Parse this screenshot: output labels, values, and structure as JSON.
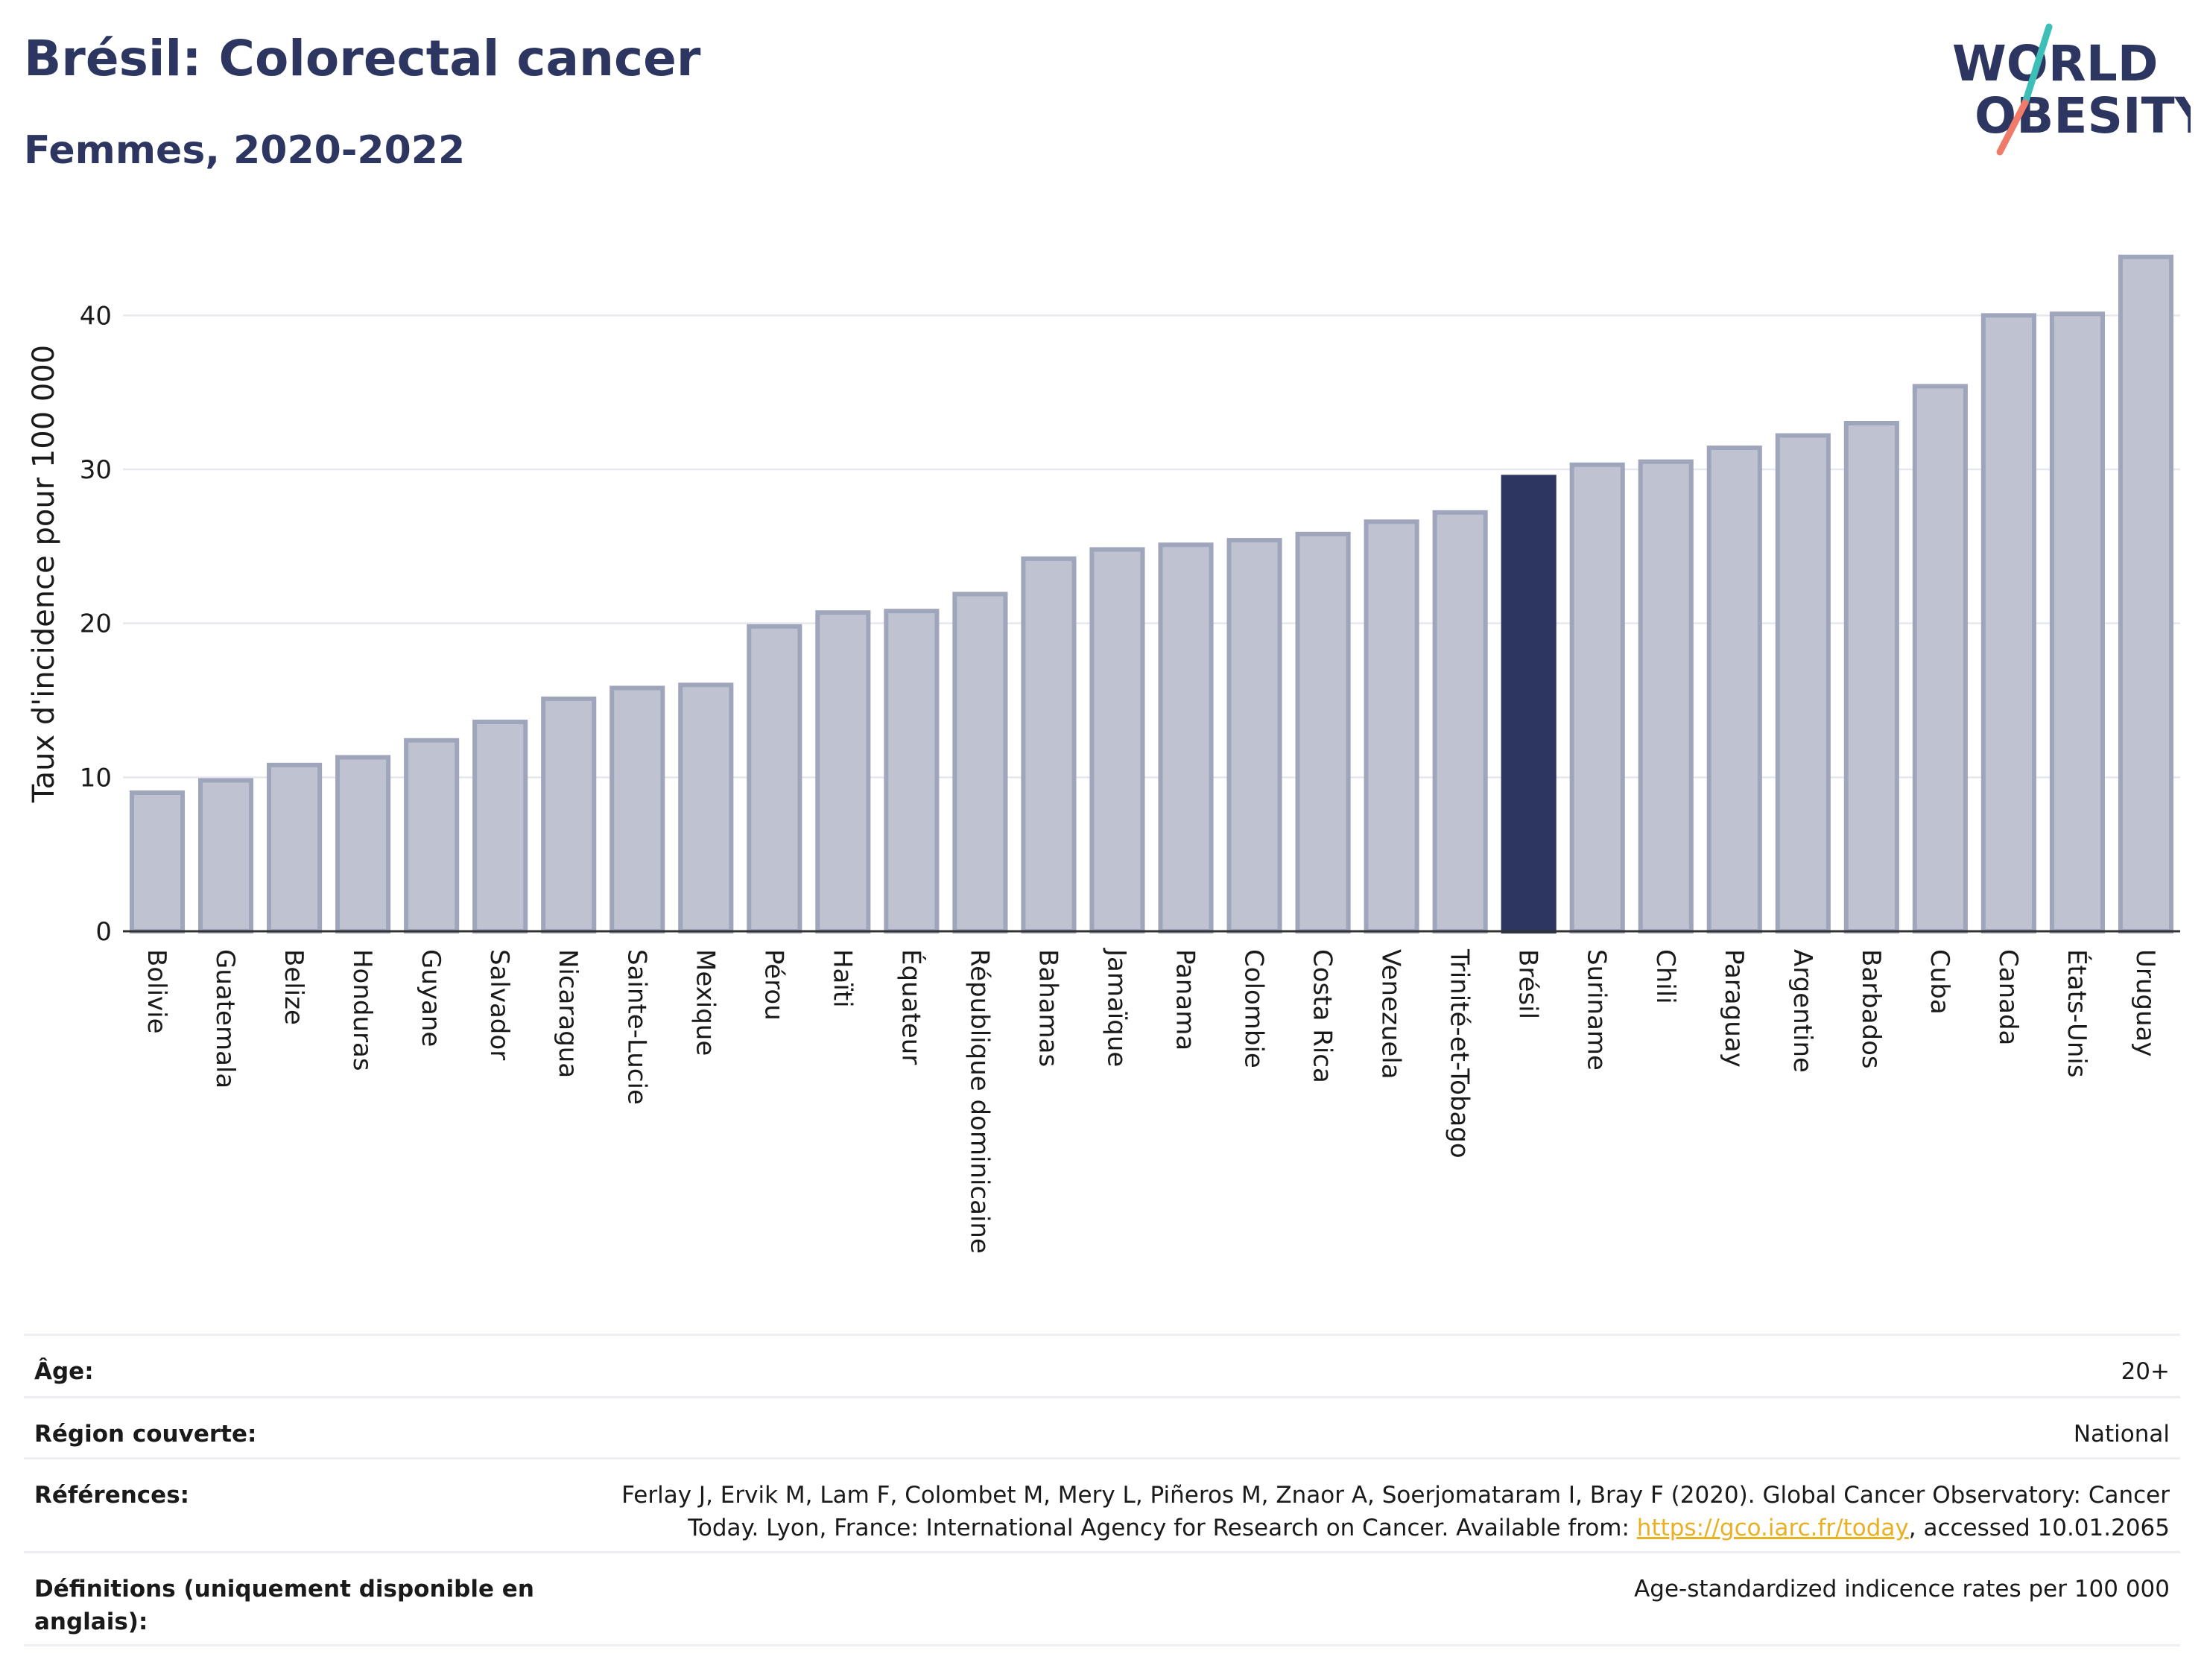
{
  "header": {
    "title": "Brésil: Colorectal cancer",
    "subtitle": "Femmes, 2020-2022"
  },
  "logo": {
    "line1": "WORLD",
    "line2": "OBESITY",
    "colors": {
      "text": "#2d3660",
      "slash_top": "#3dbfb8",
      "slash_bottom": "#f07b6a"
    }
  },
  "colors": {
    "bar_default": "#bfc3d1",
    "bar_default_stroke": "#9fa5bb",
    "bar_highlight": "#2d3660",
    "grid": "#e6e8ee",
    "axis": "#333333"
  },
  "chart_data": {
    "type": "bar",
    "title": "Brésil: Colorectal cancer",
    "subtitle": "Femmes, 2020-2022",
    "xlabel": "",
    "ylabel": "Taux d'incidence pour 100 000",
    "ylim": [
      0,
      45
    ],
    "yticks": [
      0,
      10,
      20,
      30,
      40
    ],
    "grid": true,
    "highlight": "Brésil",
    "categories": [
      "Bolivie",
      "Guatemala",
      "Belize",
      "Honduras",
      "Guyane",
      "Salvador",
      "Nicaragua",
      "Sainte-Lucie",
      "Mexique",
      "Pérou",
      "Haïti",
      "Équateur",
      "République dominicaine",
      "Bahamas",
      "Jamaïque",
      "Panama",
      "Colombie",
      "Costa Rica",
      "Venezuela",
      "Trinité-et-Tobago",
      "Brésil",
      "Suriname",
      "Chili",
      "Paraguay",
      "Argentine",
      "Barbados",
      "Cuba",
      "Canada",
      "États-Unis",
      "Uruguay"
    ],
    "values": [
      9.0,
      9.8,
      10.8,
      11.3,
      12.4,
      13.6,
      15.1,
      15.8,
      16.0,
      19.8,
      20.7,
      20.8,
      21.9,
      24.2,
      24.8,
      25.1,
      25.4,
      25.8,
      26.6,
      27.2,
      29.5,
      30.3,
      30.5,
      31.4,
      32.2,
      33.0,
      35.4,
      40.0,
      40.1,
      43.8
    ]
  },
  "info": {
    "age_label": "Âge:",
    "age_value": "20+",
    "region_label": "Région couverte:",
    "region_value": "National",
    "ref_label": "Références:",
    "ref_line1": "Ferlay J, Ervik M, Lam F, Colombet M, Mery L, Piñeros M, Znaor A, Soerjomataram I, Bray F (2020). Global Cancer Observatory: Cancer",
    "ref_line2_pre": "Today. Lyon, France: International Agency for Research on Cancer. Available from: ",
    "ref_link": "https://gco.iarc.fr/today",
    "ref_line2_post": ", accessed 10.01.2065",
    "def_label": "Définitions (uniquement disponible en anglais):",
    "def_value": "Age-standardized indicence rates per 100 000"
  }
}
